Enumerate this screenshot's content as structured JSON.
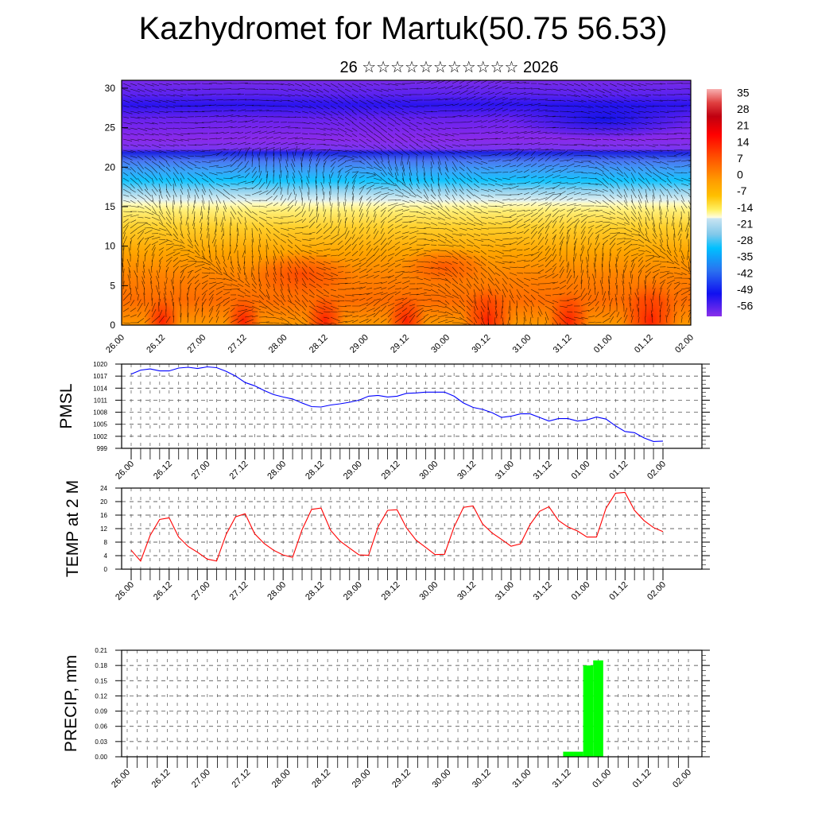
{
  "header": {
    "title": "Kazhydromet for Martuk(50.75 56.53)",
    "subtitle": "26 ☆☆☆☆☆☆☆☆☆☆☆ 2026"
  },
  "chart_data": [
    {
      "type": "heatmap",
      "name": "temperature-height-section",
      "title": "",
      "xlabel": "",
      "ylabel": "",
      "x_ticks": [
        "26.00",
        "26.12",
        "27.00",
        "27.12",
        "28.00",
        "28.12",
        "29.00",
        "29.12",
        "30.00",
        "30.12",
        "31.00",
        "31.12",
        "01.00",
        "01.12",
        "02.00"
      ],
      "y_ticks": [
        0,
        5,
        10,
        15,
        20,
        25,
        30
      ],
      "ylim": [
        0,
        31
      ],
      "colorbar": {
        "labels": [
          "35",
          "28",
          "21",
          "14",
          "7",
          "0",
          "-7",
          "-14",
          "-21",
          "-28",
          "-35",
          "-42",
          "-49",
          "-56"
        ],
        "range": [
          -63,
          42
        ]
      },
      "overlay": "wind streamlines"
    },
    {
      "type": "line",
      "name": "pmsl",
      "ylabel": "PMSL",
      "x_ticks": [
        "26.00",
        "26.12",
        "27.00",
        "27.12",
        "28.00",
        "28.12",
        "29.00",
        "29.12",
        "30.00",
        "30.12",
        "31.00",
        "31.12",
        "01.00",
        "01.12",
        "02.00"
      ],
      "y_ticks": [
        "1020",
        "1017",
        "1014",
        "1011",
        "1008",
        "1005",
        "1002",
        "999"
      ],
      "ylim": [
        999,
        1020
      ],
      "step_hours": 3,
      "color": "#0000ff",
      "values": [
        1017.5,
        1018.5,
        1018.8,
        1018.3,
        1018.3,
        1019,
        1019.2,
        1018.9,
        1019.3,
        1019.1,
        1018.2,
        1017,
        1015.4,
        1014.6,
        1013.4,
        1012.4,
        1011.8,
        1011.3,
        1010.3,
        1009.4,
        1009.3,
        1009.8,
        1010.1,
        1010.5,
        1011,
        1012,
        1012.2,
        1011.8,
        1012,
        1012.7,
        1012.8,
        1013,
        1013,
        1013,
        1012,
        1010.3,
        1009.2,
        1008.7,
        1007.9,
        1006.7,
        1007,
        1007.6,
        1007.6,
        1006.7,
        1005.8,
        1006.4,
        1006.4,
        1005.8,
        1006.1,
        1006.8,
        1006.3,
        1004.6,
        1003.2,
        1002.9,
        1001.6,
        1000.7,
        1000.8
      ]
    },
    {
      "type": "line",
      "name": "temp-2m",
      "ylabel": "TEMP at 2 M",
      "x_ticks": [
        "26.00",
        "26.12",
        "27.00",
        "27.12",
        "28.00",
        "28.12",
        "29.00",
        "29.12",
        "30.00",
        "30.12",
        "31.00",
        "31.12",
        "01.00",
        "01.12",
        "02.00"
      ],
      "y_ticks": [
        "24",
        "20",
        "16",
        "12",
        "8",
        "4",
        "0"
      ],
      "ylim": [
        0,
        24
      ],
      "step_hours": 3,
      "color": "#ff0000",
      "values": [
        5.6,
        2.4,
        10,
        14.7,
        15.2,
        9.5,
        6.7,
        5.0,
        3.0,
        2.4,
        10.3,
        15.5,
        16.4,
        10.5,
        7.6,
        5.6,
        4.2,
        3.5,
        11.7,
        17.7,
        18.1,
        11.5,
        8.3,
        6.2,
        4.2,
        4.1,
        12.5,
        17.4,
        17.6,
        12.2,
        8.6,
        6.5,
        4.3,
        4.4,
        12.5,
        18.3,
        18.7,
        13.4,
        10.7,
        8.8,
        6.8,
        7.5,
        13.2,
        17.1,
        18.5,
        14.4,
        12.5,
        11.3,
        9.5,
        9.5,
        18,
        22.5,
        22.7,
        17.4,
        14.4,
        12.3,
        11.1
      ]
    },
    {
      "type": "bar",
      "name": "precip",
      "ylabel": "PRECIP, mm",
      "x_ticks": [
        "26.00",
        "26.12",
        "27.00",
        "27.12",
        "28.00",
        "28.12",
        "29.00",
        "29.12",
        "30.00",
        "30.12",
        "31.00",
        "31.12",
        "01.00",
        "01.12",
        "02.00"
      ],
      "y_ticks": [
        "0.21",
        "0.18",
        "0.15",
        "0.12",
        "0.09",
        "0.06",
        "0.03",
        "0.00"
      ],
      "ylim": [
        0,
        0.21
      ],
      "step_hours": 3,
      "color": "#00ff00",
      "values": [
        0,
        0,
        0,
        0,
        0,
        0,
        0,
        0,
        0,
        0,
        0,
        0,
        0,
        0,
        0,
        0,
        0,
        0,
        0,
        0,
        0,
        0,
        0,
        0,
        0,
        0,
        0,
        0,
        0,
        0,
        0,
        0,
        0,
        0,
        0,
        0,
        0,
        0,
        0,
        0,
        0,
        0,
        0,
        0,
        0.01,
        0.01,
        0.18,
        0.19,
        0,
        0,
        0,
        0,
        0,
        0,
        0,
        0,
        0
      ]
    }
  ]
}
